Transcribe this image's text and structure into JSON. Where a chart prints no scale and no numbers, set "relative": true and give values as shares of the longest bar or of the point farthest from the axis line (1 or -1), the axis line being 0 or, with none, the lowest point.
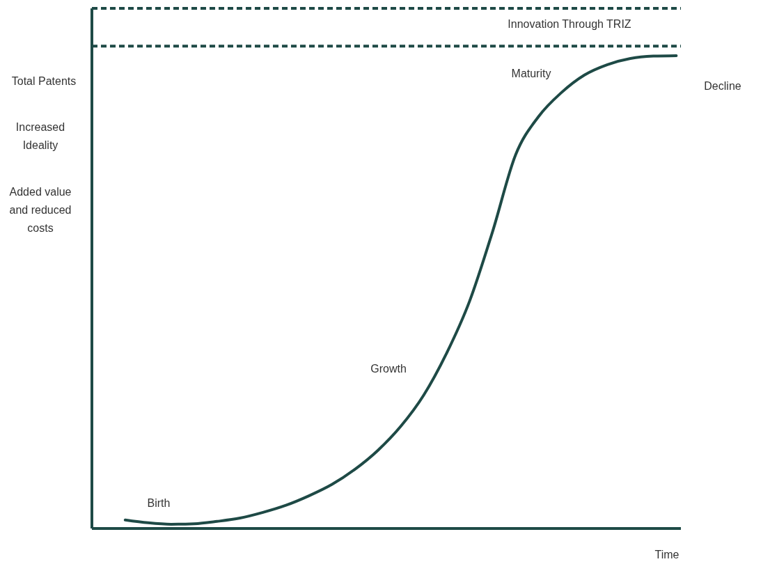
{
  "chart_data": {
    "type": "line",
    "relative": true,
    "ylabel": "Total Patents",
    "xlabel": "Time",
    "color": "#1e4a46",
    "marker": "none",
    "line_style": "solid",
    "categories": [
      null,
      null,
      null,
      null,
      null,
      null,
      null,
      null,
      null,
      null,
      null,
      null,
      null,
      null,
      null,
      null,
      null,
      null,
      null,
      null,
      null,
      null,
      null,
      null,
      null
    ],
    "values": [
      0.018,
      0.012,
      0.009,
      0.01,
      0.015,
      0.022,
      0.034,
      0.049,
      0.069,
      0.093,
      0.125,
      0.165,
      0.216,
      0.282,
      0.371,
      0.481,
      0.628,
      0.79,
      0.871,
      0.922,
      0.959,
      0.981,
      0.994,
      0.999,
      1
    ],
    "ref_lines": [
      {
        "axis": "y",
        "value": 1.1,
        "line_style": "dashed",
        "color": "#1e4a46"
      },
      {
        "axis": "y",
        "value": 1.02,
        "line_style": "dashed",
        "color": "#1e4a46"
      }
    ],
    "annotations": [
      "Innovation Through TRIZ",
      "Increased Ideality",
      "Added value and reduced costs",
      "Birth",
      "Growth",
      "Maturity",
      "Decline"
    ]
  }
}
